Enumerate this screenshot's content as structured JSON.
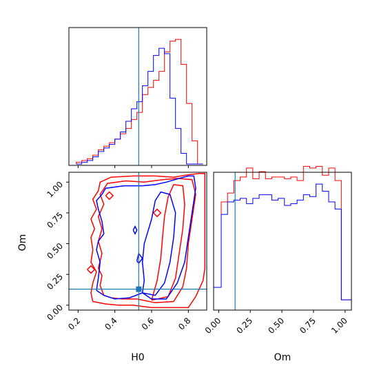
{
  "chart_data": [
    {
      "type": "histogram",
      "panel": "H0 marginal",
      "xlim": [
        0.15,
        0.9
      ],
      "truth_x": 0.53,
      "truth_color": "#1f77b4",
      "series": [
        {
          "color": "#ff0000",
          "bin_edges": [
            0.19,
            0.22,
            0.25,
            0.28,
            0.31,
            0.34,
            0.37,
            0.4,
            0.43,
            0.46,
            0.49,
            0.52,
            0.55,
            0.58,
            0.61,
            0.64,
            0.67,
            0.7,
            0.73,
            0.76,
            0.79,
            0.82,
            0.85,
            0.88
          ],
          "counts": [
            0.01,
            0.02,
            0.03,
            0.05,
            0.08,
            0.1,
            0.12,
            0.14,
            0.17,
            0.2,
            0.25,
            0.29,
            0.39,
            0.43,
            0.47,
            0.52,
            0.63,
            0.69,
            0.7,
            0.56,
            0.34,
            0.13,
            0.0
          ]
        },
        {
          "color": "#0000ff",
          "bin_edges": [
            0.19,
            0.22,
            0.25,
            0.28,
            0.31,
            0.34,
            0.37,
            0.4,
            0.43,
            0.46,
            0.49,
            0.52,
            0.55,
            0.58,
            0.61,
            0.64,
            0.67,
            0.7,
            0.73,
            0.76,
            0.79,
            0.82,
            0.85,
            0.88
          ],
          "counts": [
            0.0,
            0.01,
            0.02,
            0.04,
            0.07,
            0.09,
            0.11,
            0.14,
            0.18,
            0.24,
            0.31,
            0.35,
            0.44,
            0.52,
            0.61,
            0.65,
            0.62,
            0.37,
            0.2,
            0.06,
            0.0,
            0.0,
            0.0
          ]
        }
      ]
    },
    {
      "type": "contour",
      "panel": "H0 vs Om",
      "xlabel": "H0",
      "ylabel": "Om",
      "xlim": [
        0.15,
        0.9
      ],
      "ylim": [
        -0.04,
        1.08
      ],
      "xticks": [
        "0.2",
        "0.4",
        "0.6",
        "0.8"
      ],
      "xtick_values": [
        0.2,
        0.4,
        0.6,
        0.8
      ],
      "yticks": [
        "0.00",
        "0.25",
        "0.50",
        "0.75",
        "1.00"
      ],
      "ytick_values": [
        0.0,
        0.25,
        0.5,
        0.75,
        1.0
      ],
      "truth_x": 0.53,
      "truth_y": 0.13,
      "truth_color": "#1f77b4",
      "series": [
        {
          "color": "#ff0000",
          "contours": [
            [
              [
                0.28,
                0.03
              ],
              [
                0.27,
                0.1
              ],
              [
                0.28,
                0.18
              ],
              [
                0.3,
                0.27
              ],
              [
                0.27,
                0.35
              ],
              [
                0.28,
                0.45
              ],
              [
                0.27,
                0.55
              ],
              [
                0.29,
                0.62
              ],
              [
                0.27,
                0.7
              ],
              [
                0.3,
                0.78
              ],
              [
                0.28,
                0.86
              ],
              [
                0.31,
                0.93
              ],
              [
                0.32,
                1.0
              ],
              [
                0.38,
                1.04
              ],
              [
                0.5,
                1.05
              ],
              [
                0.62,
                1.05
              ],
              [
                0.72,
                1.04
              ],
              [
                0.8,
                1.06
              ],
              [
                0.86,
                1.07
              ],
              [
                0.89,
                1.07
              ],
              [
                0.89,
                0.3
              ],
              [
                0.88,
                0.2
              ],
              [
                0.84,
                0.07
              ],
              [
                0.8,
                -0.02
              ],
              [
                0.7,
                -0.02
              ],
              [
                0.6,
                -0.02
              ],
              [
                0.5,
                0.0
              ],
              [
                0.42,
                0.0
              ],
              [
                0.35,
                0.01
              ],
              [
                0.28,
                0.03
              ]
            ],
            [
              [
                0.34,
                0.08
              ],
              [
                0.32,
                0.16
              ],
              [
                0.33,
                0.24
              ],
              [
                0.31,
                0.3
              ],
              [
                0.33,
                0.42
              ],
              [
                0.31,
                0.52
              ],
              [
                0.33,
                0.62
              ],
              [
                0.31,
                0.72
              ],
              [
                0.34,
                0.82
              ],
              [
                0.32,
                0.9
              ],
              [
                0.36,
                0.99
              ],
              [
                0.46,
                1.01
              ],
              [
                0.56,
                1.0
              ],
              [
                0.66,
                1.02
              ],
              [
                0.74,
                1.03
              ],
              [
                0.82,
                1.02
              ],
              [
                0.84,
                0.9
              ],
              [
                0.82,
                0.7
              ],
              [
                0.8,
                0.5
              ],
              [
                0.79,
                0.3
              ],
              [
                0.77,
                0.15
              ],
              [
                0.72,
                0.03
              ],
              [
                0.62,
                0.02
              ],
              [
                0.52,
                0.05
              ],
              [
                0.44,
                0.05
              ],
              [
                0.38,
                0.06
              ],
              [
                0.34,
                0.08
              ]
            ],
            [
              [
                0.6,
                0.04
              ],
              [
                0.63,
                0.2
              ],
              [
                0.65,
                0.38
              ],
              [
                0.66,
                0.56
              ],
              [
                0.67,
                0.72
              ],
              [
                0.69,
                0.88
              ],
              [
                0.72,
                0.98
              ],
              [
                0.77,
                0.97
              ],
              [
                0.78,
                0.82
              ],
              [
                0.77,
                0.62
              ],
              [
                0.75,
                0.42
              ],
              [
                0.73,
                0.22
              ],
              [
                0.69,
                0.07
              ],
              [
                0.6,
                0.04
              ]
            ],
            [
              [
                0.61,
                0.75
              ],
              [
                0.63,
                0.72
              ],
              [
                0.65,
                0.75
              ],
              [
                0.63,
                0.78
              ],
              [
                0.61,
                0.75
              ]
            ],
            [
              [
                0.35,
                0.89
              ],
              [
                0.37,
                0.86
              ],
              [
                0.39,
                0.89
              ],
              [
                0.37,
                0.92
              ],
              [
                0.35,
                0.89
              ]
            ],
            [
              [
                0.25,
                0.29
              ],
              [
                0.27,
                0.26
              ],
              [
                0.29,
                0.29
              ],
              [
                0.27,
                0.32
              ],
              [
                0.25,
                0.29
              ]
            ]
          ]
        },
        {
          "color": "#0000ff",
          "contours": [
            [
              [
                0.3,
                0.12
              ],
              [
                0.31,
                0.22
              ],
              [
                0.32,
                0.35
              ],
              [
                0.3,
                0.45
              ],
              [
                0.31,
                0.52
              ],
              [
                0.34,
                0.58
              ],
              [
                0.33,
                0.68
              ],
              [
                0.31,
                0.78
              ],
              [
                0.3,
                0.85
              ],
              [
                0.33,
                0.9
              ],
              [
                0.35,
                0.95
              ],
              [
                0.45,
                0.97
              ],
              [
                0.55,
                0.97
              ],
              [
                0.62,
                0.98
              ],
              [
                0.68,
                1.0
              ],
              [
                0.75,
                1.03
              ],
              [
                0.8,
                1.05
              ],
              [
                0.83,
                1.05
              ],
              [
                0.84,
                0.95
              ],
              [
                0.82,
                0.75
              ],
              [
                0.8,
                0.55
              ],
              [
                0.78,
                0.35
              ],
              [
                0.74,
                0.18
              ],
              [
                0.68,
                0.05
              ],
              [
                0.6,
                0.05
              ],
              [
                0.55,
                0.1
              ],
              [
                0.48,
                0.06
              ],
              [
                0.4,
                0.05
              ],
              [
                0.34,
                0.08
              ],
              [
                0.3,
                0.12
              ]
            ],
            [
              [
                0.55,
                0.1
              ],
              [
                0.56,
                0.2
              ],
              [
                0.55,
                0.35
              ],
              [
                0.56,
                0.5
              ],
              [
                0.58,
                0.6
              ],
              [
                0.6,
                0.7
              ],
              [
                0.62,
                0.85
              ],
              [
                0.65,
                0.92
              ],
              [
                0.7,
                0.9
              ],
              [
                0.73,
                0.75
              ],
              [
                0.72,
                0.55
              ],
              [
                0.7,
                0.35
              ],
              [
                0.67,
                0.18
              ],
              [
                0.62,
                0.08
              ],
              [
                0.55,
                0.1
              ]
            ],
            [
              [
                0.52,
                0.36
              ],
              [
                0.53,
                0.34
              ],
              [
                0.55,
                0.38
              ],
              [
                0.53,
                0.42
              ],
              [
                0.52,
                0.36
              ]
            ],
            [
              [
                0.5,
                0.61
              ],
              [
                0.51,
                0.58
              ],
              [
                0.52,
                0.61
              ],
              [
                0.51,
                0.64
              ],
              [
                0.5,
                0.61
              ]
            ]
          ]
        }
      ]
    },
    {
      "type": "histogram",
      "panel": "Om marginal",
      "xlabel": "Om",
      "xlim": [
        -0.04,
        1.05
      ],
      "xticks": [
        "0.00",
        "0.25",
        "0.50",
        "0.75",
        "1.00"
      ],
      "xtick_values": [
        0.0,
        0.25,
        0.5,
        0.75,
        1.0
      ],
      "truth_x": 0.13,
      "truth_color": "#1f77b4",
      "series": [
        {
          "color": "#ff0000",
          "bin_edges": [
            -0.04,
            0.02,
            0.07,
            0.12,
            0.17,
            0.22,
            0.27,
            0.32,
            0.37,
            0.42,
            0.47,
            0.52,
            0.57,
            0.62,
            0.67,
            0.72,
            0.77,
            0.82,
            0.87,
            0.92,
            0.97,
            1.05
          ],
          "counts": [
            0.12,
            0.6,
            0.65,
            0.72,
            0.74,
            0.79,
            0.73,
            0.77,
            0.73,
            0.74,
            0.74,
            0.73,
            0.74,
            0.72,
            0.8,
            0.79,
            0.8,
            0.75,
            0.79,
            0.72,
            0.05
          ]
        },
        {
          "color": "#0000ff",
          "bin_edges": [
            -0.04,
            0.02,
            0.07,
            0.12,
            0.17,
            0.22,
            0.27,
            0.32,
            0.37,
            0.42,
            0.47,
            0.52,
            0.57,
            0.62,
            0.67,
            0.72,
            0.77,
            0.82,
            0.87,
            0.92,
            0.97,
            1.05
          ],
          "counts": [
            0.12,
            0.53,
            0.6,
            0.61,
            0.62,
            0.59,
            0.62,
            0.64,
            0.64,
            0.61,
            0.62,
            0.58,
            0.59,
            0.61,
            0.64,
            0.63,
            0.7,
            0.66,
            0.6,
            0.56,
            0.05
          ]
        }
      ]
    }
  ]
}
